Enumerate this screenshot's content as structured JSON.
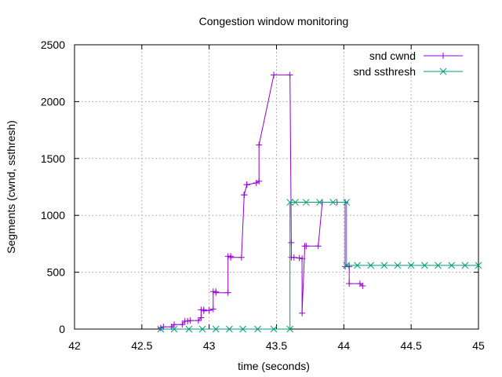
{
  "chart_data": {
    "type": "line",
    "title": "Congestion window monitoring",
    "xlabel": "time (seconds)",
    "ylabel": "Segments (cwnd, ssthresh)",
    "xlim": [
      42,
      45
    ],
    "ylim": [
      0,
      2500
    ],
    "x_ticks": [
      42,
      42.5,
      43,
      43.5,
      44,
      44.5,
      45
    ],
    "x_tick_labels": [
      "42",
      "42.5",
      "43",
      "43.5",
      "44",
      "44.5",
      "45"
    ],
    "y_ticks": [
      0,
      500,
      1000,
      1500,
      2000,
      2500
    ],
    "y_tick_labels": [
      "0",
      "500",
      "1000",
      "1500",
      "2000",
      "2500"
    ],
    "grid": true,
    "legend_position": "top-right",
    "series": [
      {
        "name": "snd cwnd",
        "color": "#9400d3",
        "marker": "plus",
        "x": [
          42.64,
          42.66,
          42.72,
          42.74,
          42.8,
          42.82,
          42.84,
          42.86,
          42.92,
          42.94,
          42.94,
          42.96,
          42.96,
          43.0,
          43.03,
          43.03,
          43.05,
          43.05,
          43.14,
          43.14,
          43.16,
          43.16,
          43.24,
          43.26,
          43.26,
          43.28,
          43.28,
          43.35,
          43.37,
          43.37,
          43.48,
          43.6,
          43.61,
          43.61,
          43.63,
          43.67,
          43.69,
          43.69,
          43.71,
          43.72,
          43.81,
          43.84,
          43.95,
          44.01,
          44.01,
          44.04,
          44.04,
          44.12,
          44.14
        ],
        "y": [
          10,
          20,
          20,
          40,
          40,
          70,
          70,
          75,
          75,
          100,
          170,
          170,
          160,
          165,
          175,
          330,
          330,
          320,
          320,
          640,
          640,
          630,
          630,
          1180,
          1180,
          1270,
          1270,
          1285,
          1300,
          1620,
          2235,
          2235,
          760,
          630,
          630,
          625,
          620,
          140,
          730,
          730,
          730,
          1115,
          1115,
          1115,
          550,
          550,
          400,
          400,
          380
        ]
      },
      {
        "name": "snd ssthresh",
        "color": "#009e73",
        "marker": "cross",
        "x": [
          42.64,
          42.74,
          42.85,
          42.95,
          43.05,
          43.15,
          43.25,
          43.36,
          43.48,
          43.6,
          43.6,
          43.64,
          43.72,
          43.82,
          43.92,
          44.02,
          44.02,
          44.1,
          44.2,
          44.3,
          44.4,
          44.5,
          44.6,
          44.7,
          44.8,
          44.9,
          45.0
        ],
        "y": [
          0,
          0,
          0,
          0,
          0,
          0,
          0,
          0,
          0,
          0,
          1115,
          1115,
          1115,
          1115,
          1115,
          1115,
          560,
          560,
          560,
          560,
          560,
          560,
          560,
          560,
          560,
          560,
          560
        ]
      }
    ]
  }
}
